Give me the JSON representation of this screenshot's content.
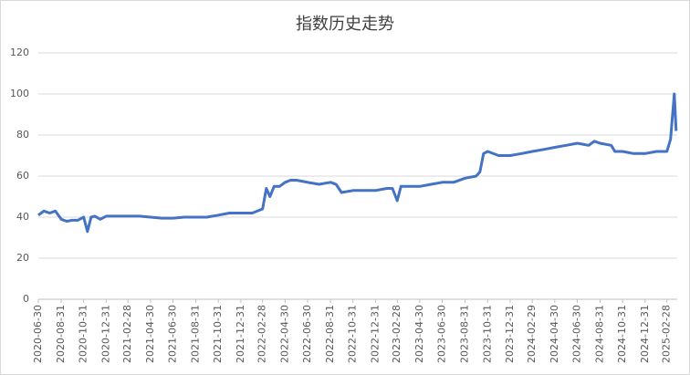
{
  "chart_data": {
    "type": "line",
    "title": "指数历史走势",
    "color": "#4472c4",
    "grid": true,
    "ylim": [
      0,
      120
    ],
    "yticks": [
      0,
      20,
      40,
      60,
      80,
      100,
      120
    ],
    "xlim": [
      "2020-06-30",
      "2025-03-28"
    ],
    "xticks": [
      "2020-06-30",
      "2020-08-31",
      "2020-10-31",
      "2020-12-31",
      "2021-02-28",
      "2021-04-30",
      "2021-06-30",
      "2021-08-31",
      "2021-10-31",
      "2021-12-31",
      "2022-02-28",
      "2022-04-30",
      "2022-06-30",
      "2022-08-31",
      "2022-10-31",
      "2022-12-31",
      "2023-02-28",
      "2023-04-30",
      "2023-06-30",
      "2023-08-31",
      "2023-10-31",
      "2023-12-31",
      "2024-02-29",
      "2024-04-30",
      "2024-06-30",
      "2024-08-31",
      "2024-10-31",
      "2024-12-31",
      "2025-02-28"
    ],
    "x": [
      "2020-06-30",
      "2020-07-15",
      "2020-07-31",
      "2020-08-15",
      "2020-08-31",
      "2020-09-15",
      "2020-09-30",
      "2020-10-15",
      "2020-10-31",
      "2020-11-10",
      "2020-11-20",
      "2020-11-30",
      "2020-12-15",
      "2020-12-31",
      "2021-01-31",
      "2021-02-28",
      "2021-03-31",
      "2021-04-30",
      "2021-05-31",
      "2021-06-30",
      "2021-07-31",
      "2021-08-31",
      "2021-09-30",
      "2021-10-31",
      "2021-11-30",
      "2021-12-31",
      "2022-01-31",
      "2022-02-28",
      "2022-03-10",
      "2022-03-20",
      "2022-03-31",
      "2022-04-15",
      "2022-04-30",
      "2022-05-15",
      "2022-05-31",
      "2022-06-30",
      "2022-07-31",
      "2022-08-31",
      "2022-09-15",
      "2022-09-30",
      "2022-10-31",
      "2022-11-30",
      "2022-12-31",
      "2023-01-31",
      "2023-02-15",
      "2023-02-28",
      "2023-03-10",
      "2023-03-31",
      "2023-04-30",
      "2023-05-31",
      "2023-06-30",
      "2023-07-31",
      "2023-08-31",
      "2023-09-30",
      "2023-10-10",
      "2023-10-20",
      "2023-10-31",
      "2023-11-30",
      "2023-12-31",
      "2024-01-31",
      "2024-02-29",
      "2024-03-31",
      "2024-04-30",
      "2024-05-31",
      "2024-06-30",
      "2024-07-31",
      "2024-08-15",
      "2024-08-31",
      "2024-09-30",
      "2024-10-10",
      "2024-10-31",
      "2024-11-30",
      "2024-12-31",
      "2025-01-31",
      "2025-02-28",
      "2025-03-10",
      "2025-03-20",
      "2025-03-25"
    ],
    "values": [
      41,
      43,
      42,
      43,
      39,
      38,
      38.5,
      38.5,
      40,
      33,
      40,
      40.5,
      39,
      40.5,
      40.5,
      40.5,
      40.5,
      40,
      39.5,
      39.5,
      40,
      40,
      40,
      41,
      42,
      42,
      42,
      44,
      54,
      50,
      55,
      55,
      57,
      58,
      58,
      57,
      56,
      57,
      56,
      52,
      53,
      53,
      53,
      54,
      54,
      48,
      55,
      55,
      55,
      56,
      57,
      57,
      59,
      60,
      62,
      71,
      72,
      70,
      70,
      71,
      72,
      73,
      74,
      75,
      76,
      75,
      77,
      76,
      75,
      72,
      72,
      71,
      71,
      72,
      72,
      78,
      100,
      82
    ]
  }
}
